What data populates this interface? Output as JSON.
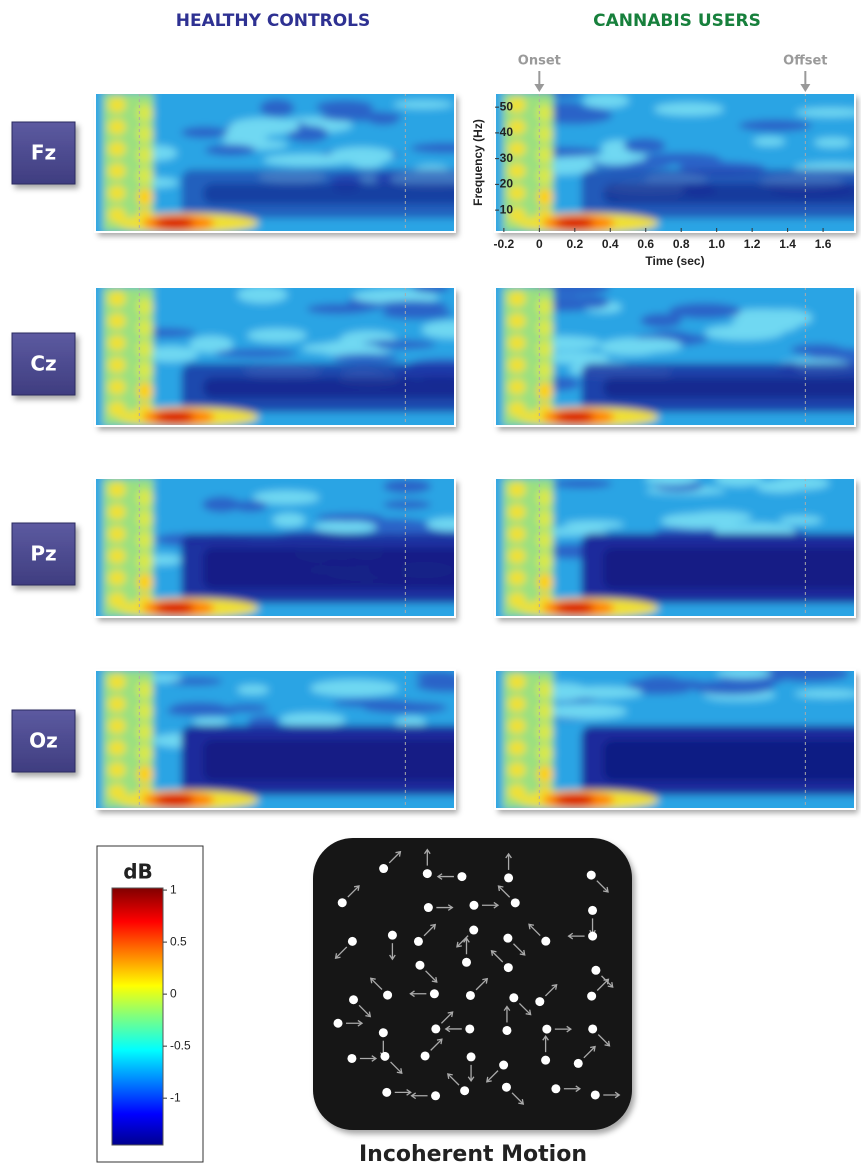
{
  "columns": [
    "HEALTHY CONTROLS",
    "CANNABIS USERS"
  ],
  "rows": [
    "Fz",
    "Cz",
    "Pz",
    "Oz"
  ],
  "markers": [
    {
      "label": "Onset",
      "time": 0
    },
    {
      "label": "Offset",
      "time": 1.5
    }
  ],
  "axes": {
    "ylabel": "Frequency (Hz)",
    "xlabel": "Time (sec)",
    "xlim": [
      -0.25,
      1.78
    ],
    "ylim": [
      1.5,
      55.5
    ],
    "xticks": [
      -0.2,
      0,
      0.2,
      0.4,
      0.6,
      0.8,
      {
        "value": 1,
        "label": "1.0"
      },
      1.2,
      1.4,
      1.6
    ],
    "yticks": [
      10,
      20,
      30,
      40,
      50
    ]
  },
  "colorbar": {
    "title": "dB",
    "lim": [
      -1.45,
      1.02
    ],
    "ticks": [
      1,
      0.5,
      0,
      -0.5,
      -1
    ]
  },
  "stimulus": {
    "title": "Incoherent Motion"
  }
}
